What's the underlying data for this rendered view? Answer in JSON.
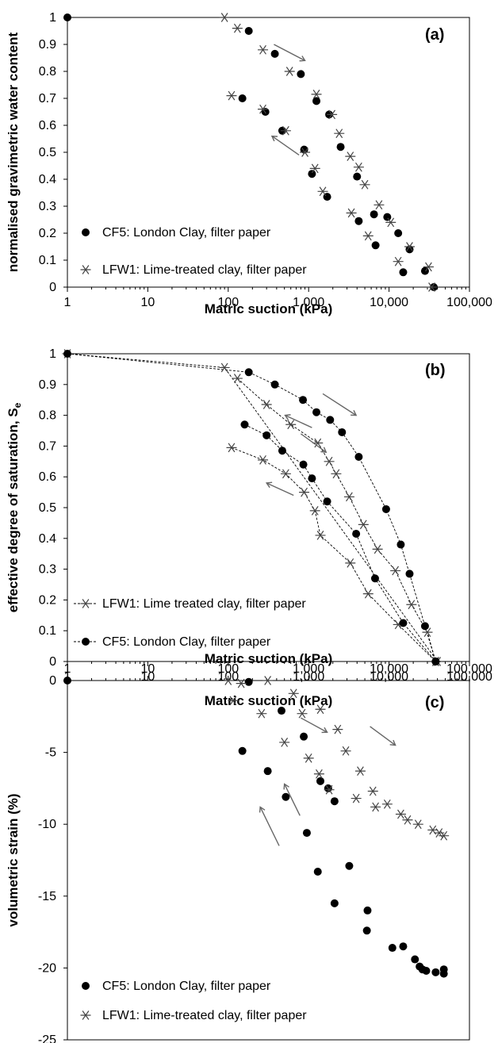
{
  "chart_data": [
    {
      "type": "scatter",
      "panel": "(a)",
      "xlabel": "Matric suction (kPa)",
      "ylabel": "normalised gravimetric water content",
      "xscale": "log",
      "xlim": [
        1,
        100000
      ],
      "ylim": [
        0,
        1
      ],
      "xticks": [
        "1",
        "10",
        "100",
        "1,000",
        "10,000",
        "100,000"
      ],
      "yticks": [
        "0",
        "0.1",
        "0.2",
        "0.3",
        "0.4",
        "0.5",
        "0.6",
        "0.7",
        "0.8",
        "0.9",
        "1"
      ],
      "legend_placement": "bottom-left",
      "series": [
        {
          "name": "CF5: London Clay, filter paper",
          "marker": "dot",
          "points": [
            [
              1,
              1.0
            ],
            [
              180,
              0.95
            ],
            [
              380,
              0.865
            ],
            [
              800,
              0.79
            ],
            [
              1250,
              0.69
            ],
            [
              1800,
              0.64
            ],
            [
              2500,
              0.52
            ],
            [
              4000,
              0.41
            ],
            [
              6500,
              0.27
            ],
            [
              9500,
              0.26
            ],
            [
              13000,
              0.2
            ],
            [
              18000,
              0.14
            ],
            [
              28000,
              0.06
            ],
            [
              36000,
              0.0
            ],
            [
              150,
              0.7
            ],
            [
              290,
              0.65
            ],
            [
              470,
              0.58
            ],
            [
              880,
              0.51
            ],
            [
              1100,
              0.42
            ],
            [
              1700,
              0.335
            ],
            [
              4200,
              0.245
            ],
            [
              6800,
              0.155
            ],
            [
              15000,
              0.055
            ]
          ]
        },
        {
          "name": "LFW1: Lime-treated clay, filter paper",
          "marker": "star",
          "points": [
            [
              90,
              1.0
            ],
            [
              130,
              0.96
            ],
            [
              270,
              0.88
            ],
            [
              580,
              0.8
            ],
            [
              1250,
              0.715
            ],
            [
              1950,
              0.64
            ],
            [
              2400,
              0.57
            ],
            [
              3300,
              0.485
            ],
            [
              4200,
              0.445
            ],
            [
              5000,
              0.38
            ],
            [
              7500,
              0.305
            ],
            [
              10500,
              0.24
            ],
            [
              18000,
              0.15
            ],
            [
              31000,
              0.075
            ],
            [
              34000,
              0.0
            ],
            [
              110,
              0.71
            ],
            [
              270,
              0.66
            ],
            [
              520,
              0.58
            ],
            [
              900,
              0.5
            ],
            [
              1200,
              0.44
            ],
            [
              1500,
              0.355
            ],
            [
              3400,
              0.275
            ],
            [
              5500,
              0.19
            ],
            [
              13000,
              0.095
            ]
          ]
        }
      ],
      "arrows": [
        {
          "from": [
            370,
            0.9
          ],
          "to": [
            900,
            0.84
          ]
        },
        {
          "from": [
            760,
            0.49
          ],
          "to": [
            350,
            0.56
          ]
        }
      ]
    },
    {
      "type": "line",
      "panel": "(b)",
      "xlabel": "Matric suction (kPa)",
      "ylabel": "effective degree of saturation, S",
      "ylabel_sub": "e",
      "xscale": "log",
      "xlim": [
        1,
        100000
      ],
      "ylim": [
        0,
        1
      ],
      "xticks": [
        "1",
        "10",
        "100",
        "1,000",
        "10,000",
        "100,000"
      ],
      "yticks": [
        "0",
        "0.1",
        "0.2",
        "0.3",
        "0.4",
        "0.5",
        "0.6",
        "0.7",
        "0.8",
        "0.9",
        "1"
      ],
      "legend_placement": "bottom-left",
      "series": [
        {
          "name": "LFW1: Lime treated clay, filter paper",
          "marker": "star",
          "lines": [
            [
              [
                1,
                1.0
              ],
              [
                90,
                0.955
              ],
              [
                40000,
                0.0
              ]
            ],
            [
              [
                130,
                0.92
              ],
              [
                300,
                0.835
              ],
              [
                600,
                0.77
              ],
              [
                1300,
                0.71
              ],
              [
                1800,
                0.65
              ],
              [
                2200,
                0.61
              ],
              [
                3200,
                0.535
              ],
              [
                4800,
                0.445
              ],
              [
                7200,
                0.365
              ],
              [
                12000,
                0.295
              ],
              [
                19000,
                0.185
              ],
              [
                30000,
                0.095
              ],
              [
                38000,
                0.0
              ]
            ],
            [
              [
                110,
                0.695
              ],
              [
                270,
                0.655
              ],
              [
                520,
                0.61
              ],
              [
                880,
                0.55
              ],
              [
                1200,
                0.49
              ],
              [
                1400,
                0.41
              ],
              [
                3300,
                0.32
              ],
              [
                5500,
                0.22
              ],
              [
                13000,
                0.12
              ],
              [
                38000,
                0.0
              ]
            ]
          ]
        },
        {
          "name": "CF5: London Clay, filter paper",
          "marker": "dot",
          "lines": [
            [
              [
                1,
                1.0
              ],
              [
                180,
                0.94
              ],
              [
                380,
                0.9
              ],
              [
                850,
                0.85
              ],
              [
                1250,
                0.81
              ],
              [
                1850,
                0.785
              ],
              [
                2600,
                0.745
              ],
              [
                4200,
                0.665
              ],
              [
                9200,
                0.495
              ],
              [
                14000,
                0.38
              ],
              [
                18000,
                0.285
              ],
              [
                28000,
                0.115
              ],
              [
                38000,
                0.0
              ]
            ],
            [
              [
                160,
                0.77
              ],
              [
                300,
                0.735
              ],
              [
                470,
                0.685
              ],
              [
                860,
                0.64
              ],
              [
                1100,
                0.595
              ],
              [
                1700,
                0.52
              ],
              [
                3900,
                0.415
              ],
              [
                6700,
                0.27
              ],
              [
                15000,
                0.125
              ],
              [
                38000,
                0.0
              ]
            ]
          ]
        }
      ],
      "arrows": [
        {
          "from": [
            1500,
            0.87
          ],
          "to": [
            3900,
            0.8
          ]
        },
        {
          "from": [
            800,
            0.74
          ],
          "to": [
            1650,
            0.68
          ]
        },
        {
          "from": [
            1100,
            0.76
          ],
          "to": [
            510,
            0.8
          ]
        },
        {
          "from": [
            650,
            0.54
          ],
          "to": [
            300,
            0.58
          ]
        }
      ]
    },
    {
      "type": "scatter",
      "panel": "(c)",
      "xlabel": "Matric suction (kPa)",
      "ylabel": "volumetric strain (%)",
      "xscale": "log",
      "xaxis_position": "top",
      "xlim": [
        1,
        100000
      ],
      "ylim": [
        -25,
        0
      ],
      "xticks": [
        "1",
        "10",
        "100",
        "1,000",
        "10,000",
        "100,000"
      ],
      "yticks": [
        "0",
        "-5",
        "-10",
        "-15",
        "-20",
        "-25"
      ],
      "legend_placement": "bottom-left",
      "series": [
        {
          "name": "CF5: London Clay, filter paper",
          "marker": "dot",
          "points": [
            [
              1,
              0.0
            ],
            [
              180,
              -0.1
            ],
            [
              150,
              -4.9
            ],
            [
              310,
              -6.3
            ],
            [
              520,
              -8.1
            ],
            [
              460,
              -2.1
            ],
            [
              870,
              -3.9
            ],
            [
              1400,
              -7.0
            ],
            [
              1750,
              -7.5
            ],
            [
              2100,
              -8.4
            ],
            [
              950,
              -10.6
            ],
            [
              1300,
              -13.3
            ],
            [
              3200,
              -12.9
            ],
            [
              2100,
              -15.5
            ],
            [
              5400,
              -16.0
            ],
            [
              5300,
              -17.4
            ],
            [
              11000,
              -18.6
            ],
            [
              15000,
              -18.5
            ],
            [
              21000,
              -19.4
            ],
            [
              24000,
              -19.9
            ],
            [
              26000,
              -20.1
            ],
            [
              29000,
              -20.2
            ],
            [
              38000,
              -20.3
            ],
            [
              48000,
              -20.1
            ],
            [
              48000,
              -20.4
            ]
          ]
        },
        {
          "name": "LFW1: Lime-treated clay, filter paper",
          "marker": "star",
          "points": [
            [
              100,
              0.0
            ],
            [
              115,
              -1.4
            ],
            [
              145,
              -0.2
            ],
            [
              310,
              0.0
            ],
            [
              260,
              -2.3
            ],
            [
              500,
              -4.3
            ],
            [
              650,
              -0.9
            ],
            [
              830,
              -2.3
            ],
            [
              1000,
              -5.4
            ],
            [
              1350,
              -6.5
            ],
            [
              1800,
              -7.6
            ],
            [
              1400,
              -2.0
            ],
            [
              2300,
              -3.4
            ],
            [
              2900,
              -4.9
            ],
            [
              3900,
              -8.2
            ],
            [
              4400,
              -6.3
            ],
            [
              6300,
              -7.7
            ],
            [
              6800,
              -8.8
            ],
            [
              9500,
              -8.6
            ],
            [
              14000,
              -9.3
            ],
            [
              17000,
              -9.7
            ],
            [
              23000,
              -10.0
            ],
            [
              35000,
              -10.4
            ],
            [
              42000,
              -10.6
            ],
            [
              48000,
              -10.8
            ]
          ]
        }
      ],
      "arrows": [
        {
          "from": [
            800,
            -2.6
          ],
          "to": [
            1700,
            -3.6
          ]
        },
        {
          "from": [
            5800,
            -3.2
          ],
          "to": [
            12000,
            -4.5
          ]
        },
        {
          "from": [
            430,
            -11.5
          ],
          "to": [
            250,
            -8.8
          ]
        },
        {
          "from": [
            780,
            -9.4
          ],
          "to": [
            500,
            -7.2
          ]
        }
      ]
    }
  ]
}
